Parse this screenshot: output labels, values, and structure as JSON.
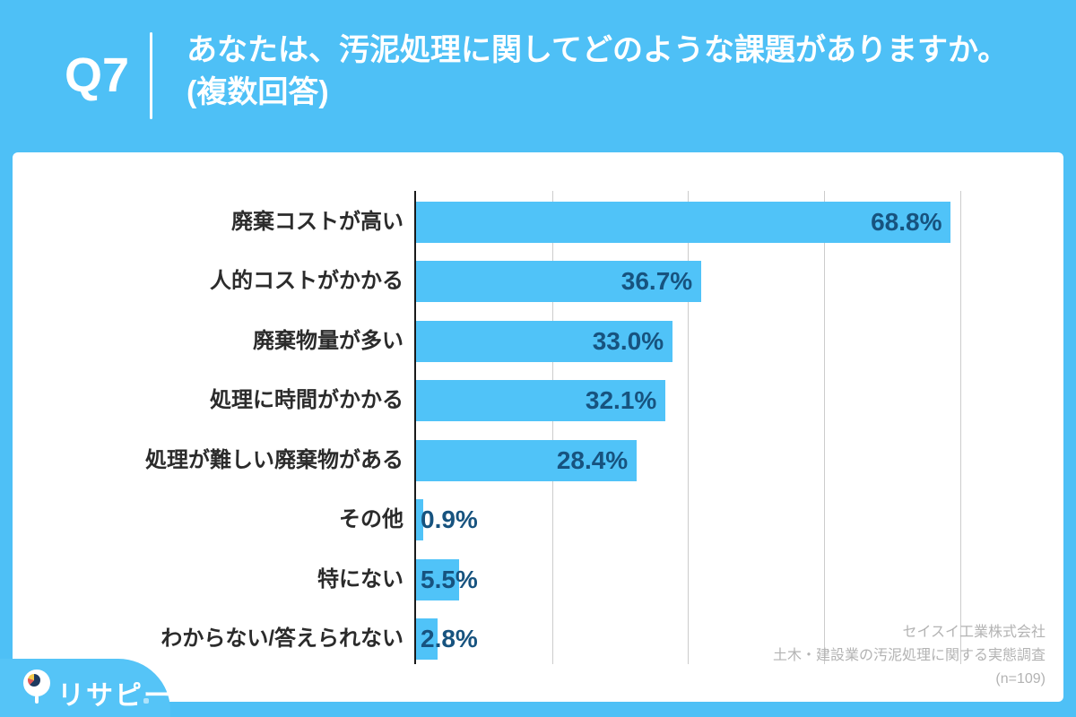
{
  "header": {
    "qnum": "Q7",
    "title_line1": "あなたは、汚泥処理に関してどのような課題がありますか。",
    "title_line2": "(複数回答)"
  },
  "chart_data": {
    "type": "bar",
    "orientation": "horizontal",
    "title": "あなたは、汚泥処理に関してどのような課題がありますか。(複数回答)",
    "categories": [
      "廃棄コストが高い",
      "人的コストがかかる",
      "廃棄物量が多い",
      "処理に時間がかかる",
      "処理が難しい廃棄物がある",
      "その他",
      "特にない",
      "わからない/答えられない"
    ],
    "values": [
      68.8,
      36.7,
      33.0,
      32.1,
      28.4,
      0.9,
      5.5,
      2.8
    ],
    "value_labels": [
      "68.8%",
      "36.7%",
      "33.0%",
      "32.1%",
      "28.4%",
      "0.9%",
      "5.5%",
      "2.8%"
    ],
    "xlabel": "",
    "ylabel": "",
    "xlim": [
      0,
      79
    ],
    "gridline_values": [
      17.5,
      35,
      52.5,
      70
    ],
    "grid": "vertical unlabeled gridlines",
    "legend": "none",
    "bar_color": "#50C3F8",
    "value_label_color": "#17537F"
  },
  "footer": {
    "lines": [
      "セイスイ工業株式会社",
      "土木・建設業の汚泥処理に関する実態調査",
      "(n=109)"
    ]
  },
  "logo": {
    "text": "リサピー",
    "icon": "magnifier-pie-icon"
  },
  "colors": {
    "background": "#4EC0F6",
    "card": "#ffffff",
    "axis": "#1a1a1a",
    "gridline": "#cccccc",
    "category_label": "#2b2b2b",
    "footer_text": "#b3b3b3"
  }
}
